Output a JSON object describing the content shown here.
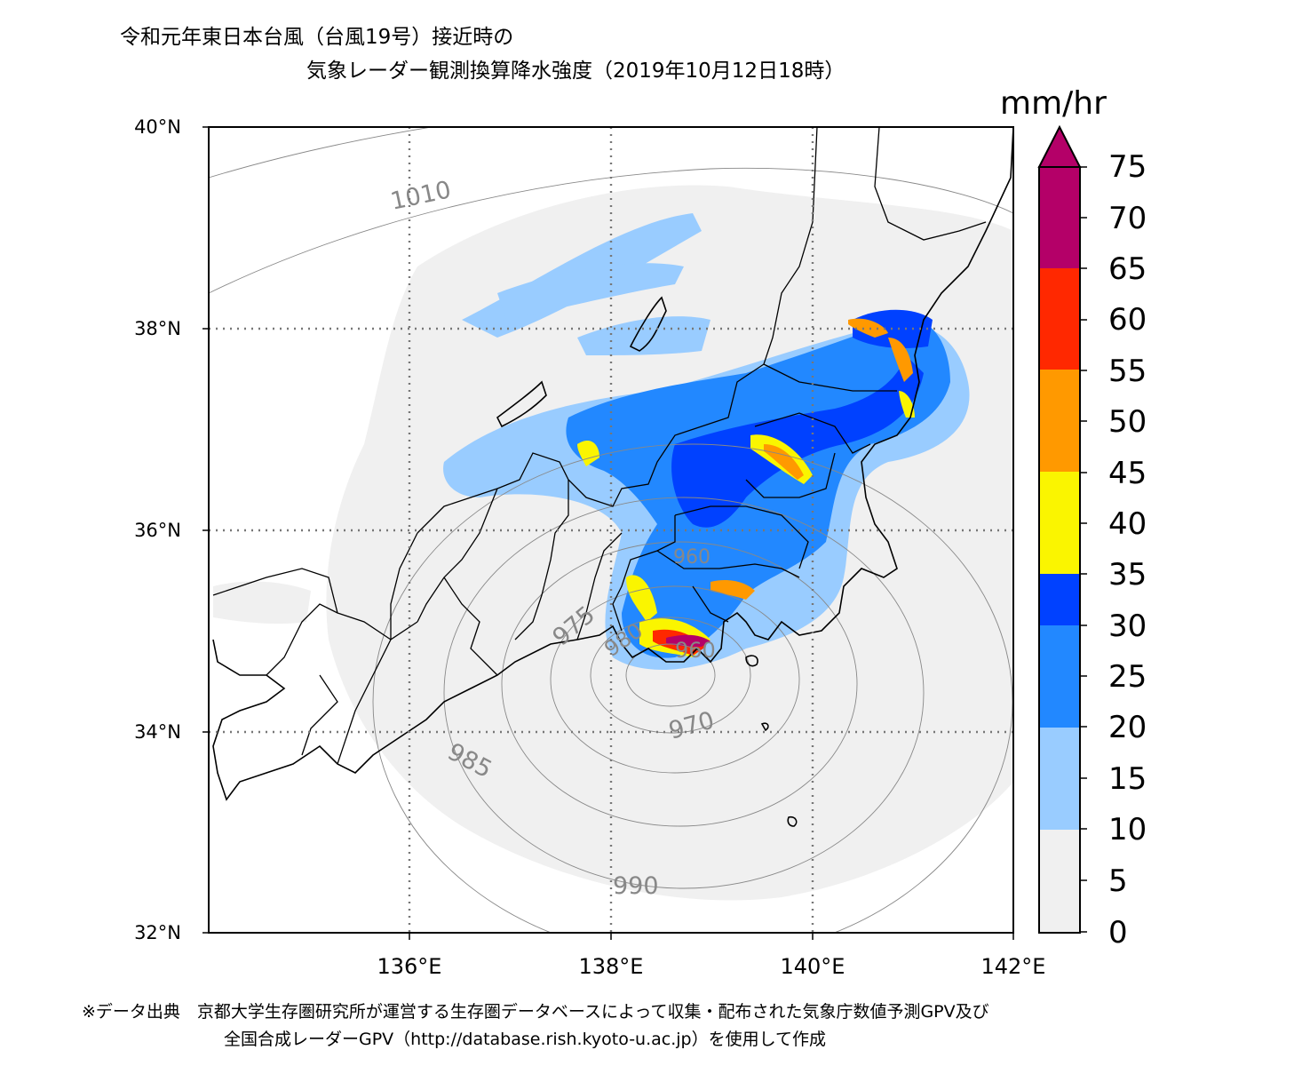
{
  "title": {
    "line1": "令和元年東日本台風（台風19号）接近時の",
    "line2": "気象レーダー観測換算降水強度（2019年10月12日18時）"
  },
  "unit": "mm/hr",
  "axes": {
    "lat_labels": [
      "40°N",
      "38°N",
      "36°N",
      "34°N",
      "32°N"
    ],
    "lon_labels": [
      "136°E",
      "138°E",
      "140°E",
      "142°E"
    ]
  },
  "colorbar": {
    "ticks": [
      "0",
      "5",
      "10",
      "15",
      "20",
      "25",
      "30",
      "35",
      "40",
      "45",
      "50",
      "55",
      "60",
      "65",
      "70",
      "75"
    ],
    "bins": [
      {
        "range": "0-10",
        "color": "#f0f0f0"
      },
      {
        "range": "10-20",
        "color": "#99ccff"
      },
      {
        "range": "20-30",
        "color": "#2288ff"
      },
      {
        "range": "30-35",
        "color": "#0041ff"
      },
      {
        "range": "35-45",
        "color": "#faf500"
      },
      {
        "range": "45-55",
        "color": "#ff9900"
      },
      {
        "range": "55-65",
        "color": "#ff2800"
      },
      {
        "range": "65-75+",
        "color": "#b40068"
      }
    ]
  },
  "isobar_labels": [
    "1010",
    "985",
    "970",
    "975",
    "990",
    "980",
    "960",
    "960"
  ],
  "footer": {
    "line1": "※データ出典　京都大学生存圏研究所が運営する生存圏データベースによって収集・配布された気象庁数値予測GPV及び",
    "line2": "全国合成レーダーGPV（http://database.rish.kyoto-u.ac.jp）を使用して作成"
  }
}
